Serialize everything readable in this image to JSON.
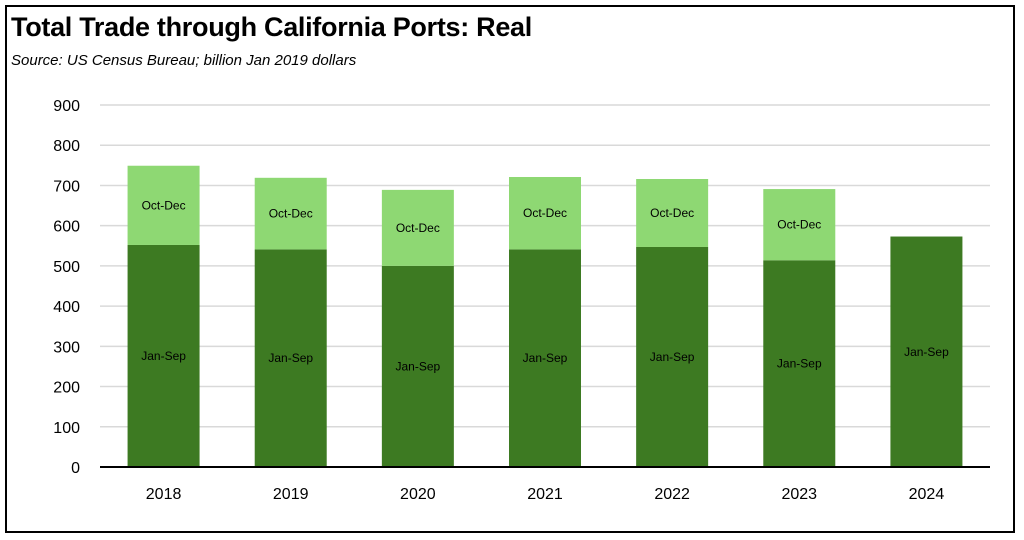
{
  "chart_data": {
    "type": "bar",
    "stacked": true,
    "title": "Total Trade through California Ports:  Real",
    "subtitle": "Source:  US Census Bureau; billion Jan 2019 dollars",
    "categories": [
      "2018",
      "2019",
      "2020",
      "2021",
      "2022",
      "2023",
      "2024"
    ],
    "series": [
      {
        "name": "Jan-Sep",
        "color": "#3d7a22",
        "values": [
          552,
          541,
          500,
          541,
          547,
          514,
          573
        ]
      },
      {
        "name": "Oct-Dec",
        "color": "#8ed873",
        "values": [
          197,
          178,
          189,
          180,
          169,
          177,
          null
        ]
      }
    ],
    "ylim": [
      0,
      900
    ],
    "yticks": [
      0,
      100,
      200,
      300,
      400,
      500,
      600,
      700,
      800,
      900
    ],
    "xlabel": "",
    "ylabel": "",
    "grid": true,
    "legend": "none"
  }
}
